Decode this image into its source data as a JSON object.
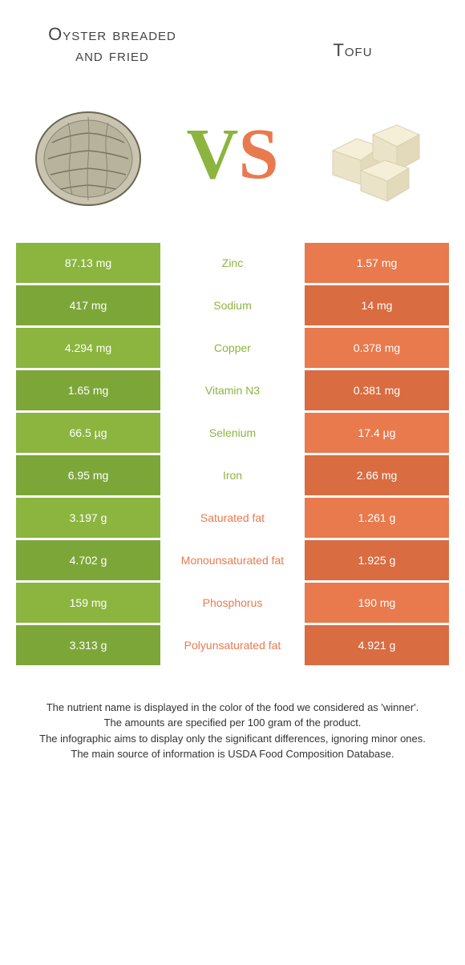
{
  "colors": {
    "green": "#8bb53f",
    "green_dark": "#7da639",
    "orange": "#e87a4e",
    "orange_dark": "#d96c41"
  },
  "header": {
    "left": "Oyster breaded and fried",
    "right": "Tofu"
  },
  "vs": {
    "v": "V",
    "s": "S"
  },
  "rows": [
    {
      "left": "87.13 mg",
      "mid": "Zinc",
      "right": "1.57 mg",
      "winner": "left",
      "shade": "light"
    },
    {
      "left": "417 mg",
      "mid": "Sodium",
      "right": "14 mg",
      "winner": "left",
      "shade": "dark"
    },
    {
      "left": "4.294 mg",
      "mid": "Copper",
      "right": "0.378 mg",
      "winner": "left",
      "shade": "light"
    },
    {
      "left": "1.65 mg",
      "mid": "Vitamin N3",
      "right": "0.381 mg",
      "winner": "left",
      "shade": "dark"
    },
    {
      "left": "66.5 µg",
      "mid": "Selenium",
      "right": "17.4 µg",
      "winner": "left",
      "shade": "light"
    },
    {
      "left": "6.95 mg",
      "mid": "Iron",
      "right": "2.66 mg",
      "winner": "left",
      "shade": "dark"
    },
    {
      "left": "3.197 g",
      "mid": "Saturated fat",
      "right": "1.261 g",
      "winner": "right",
      "shade": "light"
    },
    {
      "left": "4.702 g",
      "mid": "Monounsaturated fat",
      "right": "1.925 g",
      "winner": "right",
      "shade": "dark"
    },
    {
      "left": "159 mg",
      "mid": "Phosphorus",
      "right": "190 mg",
      "winner": "right",
      "shade": "light"
    },
    {
      "left": "3.313 g",
      "mid": "Polyunsaturated fat",
      "right": "4.921 g",
      "winner": "right",
      "shade": "dark"
    }
  ],
  "footer": {
    "l1": "The nutrient name is displayed in the color of the food we considered as 'winner'.",
    "l2": "The amounts are specified per 100 gram of the product.",
    "l3": "The infographic aims to display only the significant differences, ignoring minor ones.",
    "l4": "The main source of information is USDA Food Composition Database."
  }
}
